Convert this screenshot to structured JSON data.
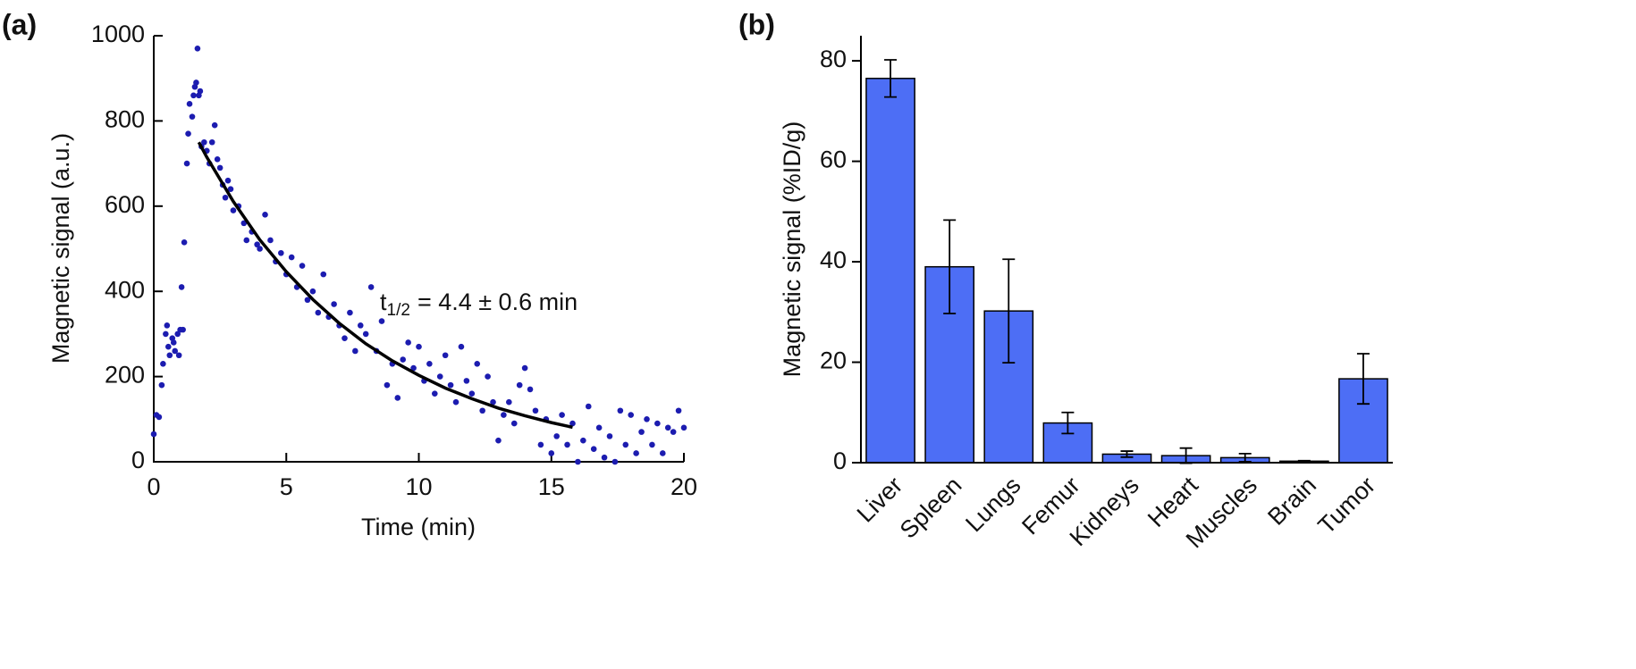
{
  "chart_data": [
    {
      "type": "scatter",
      "panel_label": "(a)",
      "xlabel": "Time (min)",
      "ylabel": "Magnetic signal (a.u.)",
      "annotation": {
        "base": "t",
        "sub": "1/2",
        "text": "= 4.4 ± 0.6 min"
      },
      "xlim": [
        0,
        20
      ],
      "xticks": [
        0,
        5,
        10,
        15,
        20
      ],
      "ylim": [
        0,
        1000
      ],
      "yticks": [
        0,
        200,
        400,
        600,
        800,
        1000
      ],
      "color": "#1c1cb0",
      "x": [
        0,
        0.1,
        0.2,
        0.3,
        0.35,
        0.45,
        0.5,
        0.55,
        0.6,
        0.7,
        0.75,
        0.8,
        0.9,
        0.95,
        1.0,
        1.05,
        1.1,
        1.15,
        1.25,
        1.3,
        1.35,
        1.45,
        1.5,
        1.55,
        1.6,
        1.65,
        1.7,
        1.75,
        1.8,
        1.9,
        2.0,
        2.1,
        2.2,
        2.3,
        2.4,
        2.5,
        2.6,
        2.7,
        2.8,
        2.9,
        3.0,
        3.2,
        3.4,
        3.5,
        3.7,
        3.9,
        4.0,
        4.2,
        4.4,
        4.6,
        4.8,
        5.0,
        5.2,
        5.4,
        5.6,
        5.8,
        6.0,
        6.2,
        6.4,
        6.6,
        6.8,
        7.0,
        7.2,
        7.4,
        7.6,
        7.8,
        8.0,
        8.2,
        8.4,
        8.6,
        8.8,
        9.0,
        9.2,
        9.4,
        9.6,
        9.8,
        10.0,
        10.2,
        10.4,
        10.6,
        10.8,
        11.0,
        11.2,
        11.4,
        11.6,
        11.8,
        12.0,
        12.2,
        12.4,
        12.6,
        12.8,
        13.0,
        13.2,
        13.4,
        13.6,
        13.8,
        14.0,
        14.2,
        14.4,
        14.6,
        14.8,
        15.0,
        15.2,
        15.4,
        15.6,
        15.8,
        16.0,
        16.2,
        16.4,
        16.6,
        16.8,
        17.0,
        17.2,
        17.4,
        17.6,
        17.8,
        18.0,
        18.2,
        18.4,
        18.6,
        18.8,
        19.0,
        19.2,
        19.4,
        19.6,
        19.8,
        20.0
      ],
      "values": [
        65,
        110,
        105,
        180,
        230,
        300,
        320,
        270,
        250,
        290,
        280,
        260,
        300,
        250,
        310,
        410,
        310,
        515,
        700,
        770,
        840,
        810,
        860,
        880,
        890,
        970,
        860,
        870,
        740,
        750,
        730,
        700,
        750,
        790,
        710,
        690,
        650,
        620,
        660,
        640,
        590,
        600,
        560,
        520,
        540,
        510,
        500,
        580,
        520,
        470,
        490,
        440,
        480,
        410,
        460,
        380,
        400,
        350,
        440,
        340,
        370,
        320,
        290,
        350,
        260,
        320,
        300,
        410,
        260,
        330,
        180,
        230,
        150,
        240,
        280,
        220,
        270,
        190,
        230,
        160,
        200,
        250,
        180,
        140,
        270,
        190,
        160,
        230,
        120,
        200,
        140,
        50,
        110,
        140,
        90,
        180,
        220,
        170,
        120,
        40,
        100,
        20,
        60,
        110,
        40,
        90,
        0,
        50,
        130,
        30,
        80,
        10,
        60,
        0,
        120,
        40,
        110,
        20,
        70,
        100,
        40,
        90,
        20,
        80,
        70,
        120,
        80
      ],
      "fit": {
        "color": "#000000",
        "x": [
          1.7,
          2,
          3,
          4,
          5,
          6,
          7,
          8,
          9,
          10,
          11,
          12,
          13,
          14,
          15,
          15.8
        ],
        "values": [
          750,
          715,
          611,
          521,
          446,
          381,
          325,
          277,
          237,
          203,
          173,
          148,
          126,
          108,
          92,
          81
        ]
      }
    },
    {
      "type": "bar",
      "panel_label": "(b)",
      "ylabel": "Magnetic signal (%ID/g)",
      "categories": [
        "Liver",
        "Spleen",
        "Lungs",
        "Femur",
        "Kidneys",
        "Heart",
        "Muscles",
        "Brain",
        "Tumor"
      ],
      "values": [
        76.5,
        39,
        30.2,
        7.9,
        1.7,
        1.4,
        1.0,
        0.3,
        16.7
      ],
      "errors": [
        3.7,
        9.3,
        10.3,
        2.1,
        0.6,
        1.5,
        0.8,
        0.1,
        5.0
      ],
      "color": "#4d6ef5",
      "ylim": [
        0,
        85
      ],
      "yticks": [
        0,
        20,
        40,
        60,
        80
      ]
    }
  ]
}
